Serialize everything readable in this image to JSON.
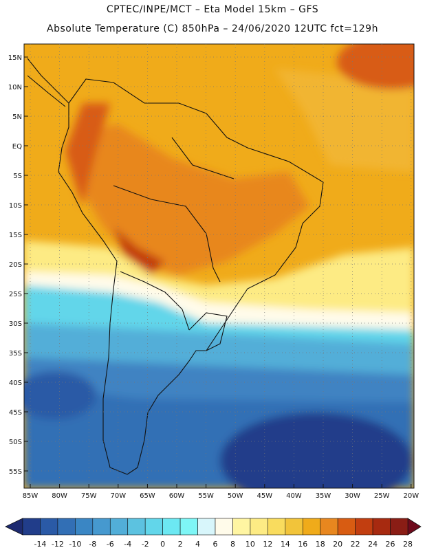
{
  "title": {
    "line1": "CPTEC/INPE/MCT –  Eta Model 15km – GFS",
    "line2": "Absolute Temperature (C) 850hPa – 24/06/2020 12UTC fct=129h"
  },
  "lat_labels": [
    "15N",
    "10N",
    "5N",
    "EQ",
    "5S",
    "10S",
    "15S",
    "20S",
    "25S",
    "30S",
    "35S",
    "40S",
    "45S",
    "50S",
    "55S"
  ],
  "lon_labels": [
    "85W",
    "80W",
    "75W",
    "70W",
    "65W",
    "60W",
    "55W",
    "50W",
    "45W",
    "40W",
    "35W",
    "30W",
    "25W",
    "20W"
  ],
  "colorbar": {
    "labels": [
      "-14",
      "-12",
      "-10",
      "-8",
      "-6",
      "-4",
      "-2",
      "0",
      "2",
      "4",
      "6",
      "8",
      "10",
      "12",
      "14",
      "16",
      "18",
      "20",
      "22",
      "24",
      "26",
      "28"
    ],
    "low_color": "#1d2a70",
    "high_color": "#6e0a1c",
    "colors": [
      "#213d8a",
      "#2a5aa6",
      "#326fb5",
      "#3a86c4",
      "#4699cf",
      "#52aed8",
      "#5cc2e0",
      "#62d6ea",
      "#6ce8f2",
      "#7ef6f6",
      "#d8f6fb",
      "#fffbea",
      "#fff5a2",
      "#fdeb84",
      "#f9dc5e",
      "#f2c43a",
      "#f0ab1a",
      "#e8871f",
      "#d85c12",
      "#c23e10",
      "#a72a10",
      "#8a1d15"
    ]
  },
  "colors": {
    "ocean_warm": "#f0ab1a",
    "land_hot": "#e8871f",
    "land_hotter": "#d85c12",
    "cold_deep": "#1f3b86",
    "cold_mid": "#3f83c2",
    "cyan": "#5cd9ec"
  }
}
